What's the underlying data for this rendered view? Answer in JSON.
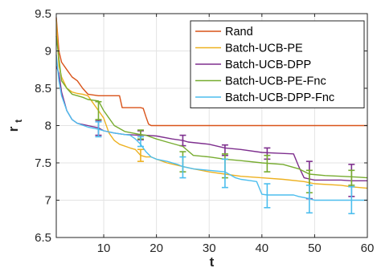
{
  "chart_data": {
    "type": "line",
    "xlabel": "t",
    "ylabel": "r",
    "ylabel_subscript": "t",
    "xlim": [
      1,
      60
    ],
    "ylim": [
      6.5,
      9.5
    ],
    "xticks": [
      10,
      20,
      30,
      40,
      50,
      60
    ],
    "yticks": [
      6.5,
      7,
      7.5,
      8,
      8.5,
      9,
      9.5
    ],
    "xtick_labels": [
      "10",
      "20",
      "30",
      "40",
      "50",
      "60"
    ],
    "ytick_labels": [
      "6.5",
      "7",
      "7.5",
      "8",
      "8.5",
      "9",
      "9.5"
    ],
    "grid": true,
    "legend_position": "top-right",
    "series": [
      {
        "name": "Rand",
        "color": "#d95319",
        "points": [
          [
            1,
            9.45
          ],
          [
            1.5,
            9.0
          ],
          [
            2,
            8.85
          ],
          [
            3,
            8.75
          ],
          [
            4,
            8.65
          ],
          [
            5,
            8.6
          ],
          [
            6,
            8.5
          ],
          [
            7,
            8.42
          ],
          [
            9,
            8.4
          ],
          [
            10,
            8.4
          ],
          [
            13,
            8.4
          ],
          [
            13.5,
            8.24
          ],
          [
            17,
            8.24
          ],
          [
            17.5,
            8.23
          ],
          [
            18,
            8.12
          ],
          [
            18.5,
            8.02
          ],
          [
            19,
            8.0
          ],
          [
            60,
            8.0
          ]
        ],
        "errorbars": []
      },
      {
        "name": "Batch-UCB-PE",
        "color": "#edb120",
        "points": [
          [
            1,
            9.42
          ],
          [
            1.5,
            8.8
          ],
          [
            2,
            8.65
          ],
          [
            3,
            8.5
          ],
          [
            4,
            8.45
          ],
          [
            5,
            8.43
          ],
          [
            6,
            8.42
          ],
          [
            7,
            8.4
          ],
          [
            8,
            8.3
          ],
          [
            9,
            8.2
          ],
          [
            10,
            8.1
          ],
          [
            11,
            7.9
          ],
          [
            12,
            7.8
          ],
          [
            13,
            7.75
          ],
          [
            15,
            7.7
          ],
          [
            16,
            7.68
          ],
          [
            17,
            7.6
          ],
          [
            18,
            7.58
          ],
          [
            19,
            7.58
          ],
          [
            20,
            7.55
          ],
          [
            22,
            7.5
          ],
          [
            25,
            7.45
          ],
          [
            27,
            7.42
          ],
          [
            30,
            7.38
          ],
          [
            33,
            7.35
          ],
          [
            36,
            7.32
          ],
          [
            40,
            7.3
          ],
          [
            44,
            7.28
          ],
          [
            48,
            7.25
          ],
          [
            50,
            7.22
          ],
          [
            55,
            7.2
          ],
          [
            57,
            7.18
          ],
          [
            60,
            7.16
          ]
        ],
        "errorbars": [
          {
            "x": 17,
            "y": 7.6,
            "lo": 7.52,
            "hi": 7.68
          }
        ]
      },
      {
        "name": "Batch-UCB-DPP",
        "color": "#7e2f8e",
        "points": [
          [
            1,
            8.8
          ],
          [
            1.5,
            8.7
          ],
          [
            2,
            8.45
          ],
          [
            3,
            8.2
          ],
          [
            4,
            8.08
          ],
          [
            5,
            8.03
          ],
          [
            7,
            8.0
          ],
          [
            9,
            7.97
          ],
          [
            10,
            7.93
          ],
          [
            12,
            7.9
          ],
          [
            14,
            7.88
          ],
          [
            17,
            7.87
          ],
          [
            18,
            7.87
          ],
          [
            20,
            7.86
          ],
          [
            23,
            7.82
          ],
          [
            25,
            7.8
          ],
          [
            26,
            7.78
          ],
          [
            30,
            7.75
          ],
          [
            33,
            7.7
          ],
          [
            36,
            7.68
          ],
          [
            40,
            7.64
          ],
          [
            43,
            7.63
          ],
          [
            46,
            7.62
          ],
          [
            47,
            7.45
          ],
          [
            48,
            7.3
          ],
          [
            50,
            7.27
          ],
          [
            55,
            7.27
          ],
          [
            57,
            7.26
          ],
          [
            60,
            7.26
          ]
        ],
        "errorbars": [
          {
            "x": 9,
            "y": 7.97,
            "lo": 7.87,
            "hi": 8.07
          },
          {
            "x": 17,
            "y": 7.87,
            "lo": 7.81,
            "hi": 7.93
          },
          {
            "x": 25,
            "y": 7.8,
            "lo": 7.73,
            "hi": 7.87
          },
          {
            "x": 33,
            "y": 7.68,
            "lo": 7.6,
            "hi": 7.74
          },
          {
            "x": 41,
            "y": 7.63,
            "lo": 7.55,
            "hi": 7.7
          },
          {
            "x": 49,
            "y": 7.27,
            "lo": 7.02,
            "hi": 7.52
          },
          {
            "x": 57,
            "y": 7.26,
            "lo": 7.05,
            "hi": 7.48
          }
        ]
      },
      {
        "name": "Batch-UCB-PE-Fnc",
        "color": "#77ac30",
        "points": [
          [
            1,
            9.2
          ],
          [
            1.5,
            8.9
          ],
          [
            2,
            8.6
          ],
          [
            3,
            8.5
          ],
          [
            4,
            8.42
          ],
          [
            6,
            8.38
          ],
          [
            7,
            8.35
          ],
          [
            9,
            8.33
          ],
          [
            10,
            8.2
          ],
          [
            11,
            8.1
          ],
          [
            12,
            8.0
          ],
          [
            14,
            7.92
          ],
          [
            17,
            7.88
          ],
          [
            18,
            7.87
          ],
          [
            20,
            7.82
          ],
          [
            22,
            7.78
          ],
          [
            25,
            7.72
          ],
          [
            27,
            7.6
          ],
          [
            30,
            7.58
          ],
          [
            33,
            7.55
          ],
          [
            36,
            7.53
          ],
          [
            40,
            7.5
          ],
          [
            44,
            7.48
          ],
          [
            47,
            7.42
          ],
          [
            49,
            7.35
          ],
          [
            52,
            7.33
          ],
          [
            55,
            7.32
          ],
          [
            58,
            7.31
          ],
          [
            60,
            7.3
          ]
        ],
        "errorbars": [
          {
            "x": 9,
            "y": 8.18,
            "lo": 8.08,
            "hi": 8.32
          },
          {
            "x": 17,
            "y": 7.88,
            "lo": 7.82,
            "hi": 7.94
          },
          {
            "x": 25,
            "y": 7.6,
            "lo": 7.38,
            "hi": 7.65
          },
          {
            "x": 33,
            "y": 7.55,
            "lo": 7.3,
            "hi": 7.62
          },
          {
            "x": 41,
            "y": 7.5,
            "lo": 7.38,
            "hi": 7.6
          },
          {
            "x": 49,
            "y": 7.35,
            "lo": 7.1,
            "hi": 7.4
          },
          {
            "x": 57,
            "y": 7.31,
            "lo": 7.2,
            "hi": 7.4
          }
        ]
      },
      {
        "name": "Batch-UCB-DPP-Fnc",
        "color": "#4dbeee",
        "points": [
          [
            1,
            8.95
          ],
          [
            1.5,
            8.6
          ],
          [
            2,
            8.4
          ],
          [
            3,
            8.2
          ],
          [
            4,
            8.08
          ],
          [
            5,
            8.03
          ],
          [
            7,
            7.98
          ],
          [
            9,
            7.95
          ],
          [
            10,
            7.93
          ],
          [
            12,
            7.9
          ],
          [
            14,
            7.88
          ],
          [
            15,
            7.87
          ],
          [
            16,
            7.82
          ],
          [
            17,
            7.75
          ],
          [
            18,
            7.65
          ],
          [
            19,
            7.58
          ],
          [
            20,
            7.55
          ],
          [
            22,
            7.52
          ],
          [
            24,
            7.48
          ],
          [
            25,
            7.45
          ],
          [
            27,
            7.42
          ],
          [
            30,
            7.4
          ],
          [
            33,
            7.38
          ],
          [
            35,
            7.3
          ],
          [
            36,
            7.28
          ],
          [
            38,
            7.26
          ],
          [
            39,
            7.25
          ],
          [
            40,
            7.08
          ],
          [
            41,
            7.07
          ],
          [
            44,
            7.07
          ],
          [
            46,
            7.07
          ],
          [
            47,
            7.05
          ],
          [
            49,
            7.02
          ],
          [
            50,
            7.0
          ],
          [
            55,
            7.0
          ],
          [
            60,
            7.0
          ]
        ],
        "errorbars": [
          {
            "x": 9,
            "y": 7.95,
            "lo": 7.85,
            "hi": 8.05
          },
          {
            "x": 17,
            "y": 7.78,
            "lo": 7.72,
            "hi": 7.85
          },
          {
            "x": 25,
            "y": 7.45,
            "lo": 7.3,
            "hi": 7.58
          },
          {
            "x": 33,
            "y": 7.38,
            "lo": 7.17,
            "hi": 7.55
          },
          {
            "x": 41,
            "y": 7.07,
            "lo": 6.9,
            "hi": 7.22
          },
          {
            "x": 49,
            "y": 7.02,
            "lo": 6.83,
            "hi": 7.2
          },
          {
            "x": 57,
            "y": 7.0,
            "lo": 6.82,
            "hi": 7.18
          }
        ]
      }
    ]
  }
}
